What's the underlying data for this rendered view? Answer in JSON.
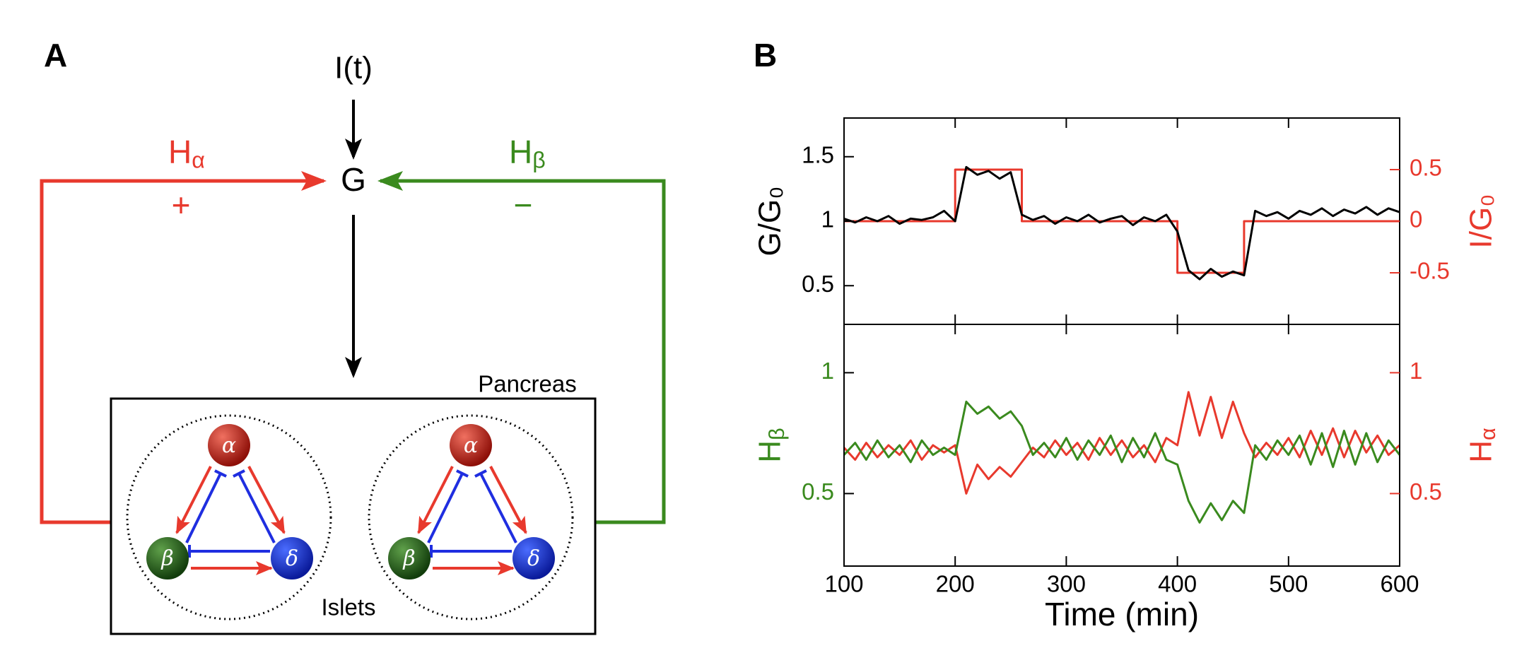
{
  "panel_a": {
    "label": "A",
    "input": "I(t)",
    "glucose": "G",
    "alpha_feedback": {
      "label": "Hα",
      "sign": "+"
    },
    "beta_feedback": {
      "label": "Hβ",
      "sign": "−"
    },
    "organ": "Pancreas",
    "unit": "Islets",
    "islets": [
      {
        "alpha": "α",
        "beta": "β",
        "delta": "δ"
      },
      {
        "alpha": "α",
        "beta": "β",
        "delta": "δ"
      }
    ]
  },
  "panel_b": {
    "label": "B"
  },
  "chart_data": [
    {
      "type": "line",
      "x": [
        100,
        110,
        120,
        130,
        140,
        150,
        160,
        170,
        180,
        190,
        200,
        210,
        220,
        230,
        240,
        250,
        260,
        270,
        280,
        290,
        300,
        310,
        320,
        330,
        340,
        350,
        360,
        370,
        380,
        390,
        400,
        410,
        420,
        430,
        440,
        450,
        460,
        470,
        480,
        490,
        500,
        510,
        520,
        530,
        540,
        550,
        560,
        570,
        580,
        590,
        600
      ],
      "xlim": [
        100,
        600
      ],
      "xticks": [
        100,
        200,
        300,
        400,
        500,
        600
      ],
      "ylim": [
        0.2,
        1.8
      ],
      "yticks": [
        0.5,
        1,
        1.5
      ],
      "ylabel": "G/G₀",
      "ylabel_color": "#000000",
      "y2lim": [
        -1,
        1
      ],
      "y2ticks": [
        -0.5,
        0,
        0.5
      ],
      "y2label": "I/G₀",
      "y2label_color": "#e8392d",
      "series": [
        {
          "name": "I/G₀",
          "color": "#e8392d",
          "axis": "y2",
          "x": [
            100,
            200,
            200,
            260,
            260,
            400,
            400,
            460,
            460,
            600
          ],
          "values": [
            0,
            0,
            0.5,
            0.5,
            0,
            0,
            -0.5,
            -0.5,
            0,
            0
          ]
        },
        {
          "name": "G/G₀",
          "color": "#000000",
          "values": [
            1.02,
            0.99,
            1.03,
            1.0,
            1.04,
            0.98,
            1.02,
            1.01,
            1.03,
            1.08,
            1.0,
            1.42,
            1.36,
            1.39,
            1.33,
            1.38,
            1.05,
            1.01,
            1.04,
            0.98,
            1.03,
            1.0,
            1.05,
            0.99,
            1.02,
            1.04,
            0.97,
            1.03,
            1.0,
            1.05,
            0.92,
            0.62,
            0.55,
            0.63,
            0.57,
            0.61,
            0.58,
            1.08,
            1.04,
            1.07,
            1.02,
            1.08,
            1.05,
            1.1,
            1.04,
            1.09,
            1.06,
            1.11,
            1.05,
            1.1,
            1.07
          ]
        }
      ]
    },
    {
      "type": "line",
      "x": [
        100,
        110,
        120,
        130,
        140,
        150,
        160,
        170,
        180,
        190,
        200,
        210,
        220,
        230,
        240,
        250,
        260,
        270,
        280,
        290,
        300,
        310,
        320,
        330,
        340,
        350,
        360,
        370,
        380,
        390,
        400,
        410,
        420,
        430,
        440,
        450,
        460,
        470,
        480,
        490,
        500,
        510,
        520,
        530,
        540,
        550,
        560,
        570,
        580,
        590,
        600
      ],
      "xlim": [
        100,
        600
      ],
      "xticks": [
        100,
        200,
        300,
        400,
        500,
        600
      ],
      "xlabel": "Time (min)",
      "ylim": [
        0.2,
        1.2
      ],
      "yticks": [
        0.5,
        1
      ],
      "ylabel": "Hβ",
      "ylabel_color": "#3a8a1e",
      "y2lim": [
        0.2,
        1.2
      ],
      "y2ticks": [
        0.5,
        1
      ],
      "y2label": "Hα",
      "y2label_color": "#e8392d",
      "series": [
        {
          "name": "Hα",
          "color": "#e8392d",
          "axis": "y2",
          "values": [
            0.69,
            0.64,
            0.71,
            0.65,
            0.7,
            0.66,
            0.72,
            0.64,
            0.7,
            0.67,
            0.7,
            0.5,
            0.62,
            0.56,
            0.61,
            0.57,
            0.63,
            0.69,
            0.65,
            0.72,
            0.66,
            0.71,
            0.64,
            0.73,
            0.66,
            0.72,
            0.65,
            0.7,
            0.63,
            0.73,
            0.7,
            0.92,
            0.74,
            0.9,
            0.73,
            0.88,
            0.75,
            0.65,
            0.71,
            0.66,
            0.73,
            0.65,
            0.76,
            0.66,
            0.77,
            0.65,
            0.76,
            0.67,
            0.74,
            0.66,
            0.7
          ]
        },
        {
          "name": "Hβ",
          "color": "#3a8a1e",
          "values": [
            0.66,
            0.71,
            0.64,
            0.72,
            0.65,
            0.7,
            0.63,
            0.72,
            0.66,
            0.69,
            0.66,
            0.88,
            0.83,
            0.86,
            0.81,
            0.84,
            0.78,
            0.66,
            0.71,
            0.65,
            0.73,
            0.64,
            0.72,
            0.66,
            0.74,
            0.63,
            0.73,
            0.65,
            0.75,
            0.64,
            0.62,
            0.47,
            0.38,
            0.46,
            0.39,
            0.47,
            0.42,
            0.7,
            0.64,
            0.72,
            0.66,
            0.74,
            0.62,
            0.75,
            0.61,
            0.76,
            0.62,
            0.75,
            0.63,
            0.72,
            0.66
          ]
        }
      ]
    }
  ]
}
